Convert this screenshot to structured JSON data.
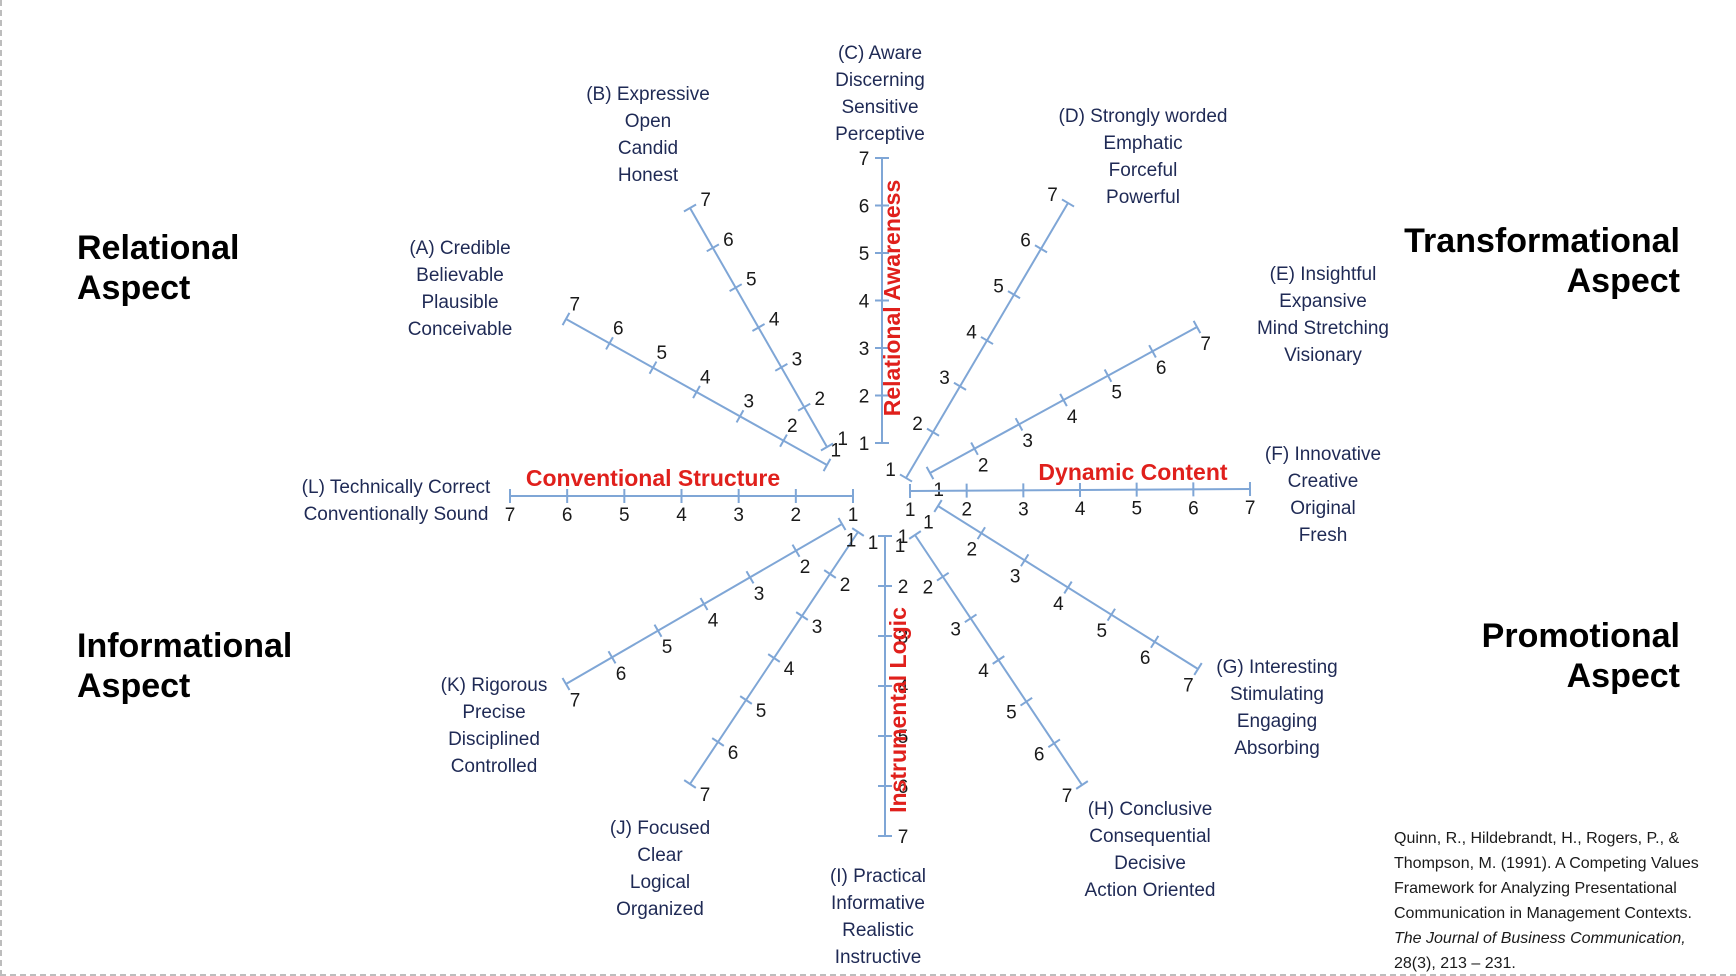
{
  "aspects": {
    "relational": [
      "Relational",
      "Aspect"
    ],
    "transformational": [
      "Transformational",
      "Aspect"
    ],
    "informational": [
      "Informational",
      "Aspect"
    ],
    "promotional": [
      "Promotional",
      "Aspect"
    ]
  },
  "dimensions": {
    "relational_awareness": "Relational Awareness",
    "conventional_structure": "Conventional Structure",
    "dynamic_content": "Dynamic Content",
    "instrumental_logic": "Instrumental Logic"
  },
  "scale": [
    "1",
    "2",
    "3",
    "4",
    "5",
    "6",
    "7"
  ],
  "axes": [
    {
      "id": "A",
      "lines": [
        "(A) Credible",
        "Believable",
        "Plausible",
        "Conceivable"
      ]
    },
    {
      "id": "B",
      "lines": [
        "(B) Expressive",
        "Open",
        "Candid",
        "Honest"
      ]
    },
    {
      "id": "C",
      "lines": [
        "(C) Aware",
        "Discerning",
        "Sensitive",
        "Perceptive"
      ]
    },
    {
      "id": "D",
      "lines": [
        "(D) Strongly worded",
        "Emphatic",
        "Forceful",
        "Powerful"
      ]
    },
    {
      "id": "E",
      "lines": [
        "(E) Insightful",
        "Expansive",
        "Mind Stretching",
        "Visionary"
      ]
    },
    {
      "id": "F",
      "lines": [
        "(F) Innovative",
        "Creative",
        "Original",
        "Fresh"
      ]
    },
    {
      "id": "G",
      "lines": [
        "(G) Interesting",
        "Stimulating",
        "Engaging",
        "Absorbing"
      ]
    },
    {
      "id": "H",
      "lines": [
        "(H) Conclusive",
        "Consequential",
        "Decisive",
        "Action Oriented"
      ]
    },
    {
      "id": "I",
      "lines": [
        "(I) Practical",
        "Informative",
        "Realistic",
        "Instructive"
      ]
    },
    {
      "id": "J",
      "lines": [
        "(J) Focused",
        "Clear",
        "Logical",
        "Organized"
      ]
    },
    {
      "id": "K",
      "lines": [
        "(K) Rigorous",
        "Precise",
        "Disciplined",
        "Controlled"
      ]
    },
    {
      "id": "L",
      "lines": [
        "(L) Technically Correct",
        "Conventionally Sound"
      ]
    }
  ],
  "citation": {
    "lines": [
      "Quinn, R., Hildebrandt, H., Rogers, P., &",
      "Thompson, M. (1991). A Competing Values",
      "Framework for Analyzing Presentational",
      "Communication in Management Contexts."
    ],
    "journal": "The Journal of Business Communication,",
    "issue": "28(3), 213 – 231."
  }
}
